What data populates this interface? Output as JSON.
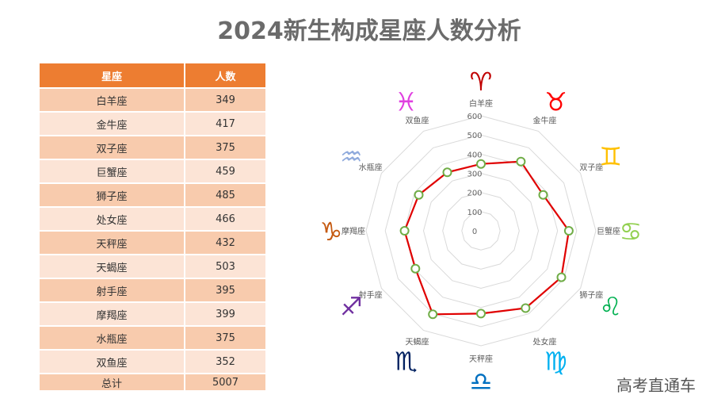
{
  "title": "2024新生构成星座人数分析",
  "table": {
    "headers": [
      "星座",
      "人数"
    ],
    "rows": [
      {
        "sign": "白羊座",
        "count": "349"
      },
      {
        "sign": "金牛座",
        "count": "417"
      },
      {
        "sign": "双子座",
        "count": "375"
      },
      {
        "sign": "巨蟹座",
        "count": "459"
      },
      {
        "sign": "狮子座",
        "count": "485"
      },
      {
        "sign": "处女座",
        "count": "466"
      },
      {
        "sign": "天秤座",
        "count": "432"
      },
      {
        "sign": "天蝎座",
        "count": "503"
      },
      {
        "sign": "射手座",
        "count": "395"
      },
      {
        "sign": "摩羯座",
        "count": "399"
      },
      {
        "sign": "水瓶座",
        "count": "375"
      },
      {
        "sign": "双鱼座",
        "count": "352"
      }
    ],
    "total": {
      "label": "总计",
      "count": "5007"
    }
  },
  "zodiac_icons": [
    {
      "sign": "白羊座",
      "icon": "aries-icon",
      "glyph": "♈",
      "color": "#c00000"
    },
    {
      "sign": "金牛座",
      "icon": "taurus-icon",
      "glyph": "♉",
      "color": "#ff0000"
    },
    {
      "sign": "双子座",
      "icon": "gemini-icon",
      "glyph": "♊",
      "color": "#ffc000"
    },
    {
      "sign": "巨蟹座",
      "icon": "cancer-icon",
      "glyph": "♋",
      "color": "#92d050"
    },
    {
      "sign": "狮子座",
      "icon": "leo-icon",
      "glyph": "♌",
      "color": "#00b050"
    },
    {
      "sign": "处女座",
      "icon": "virgo-icon",
      "glyph": "♍",
      "color": "#00b0f0"
    },
    {
      "sign": "天秤座",
      "icon": "libra-icon",
      "glyph": "♎",
      "color": "#0070c0"
    },
    {
      "sign": "天蝎座",
      "icon": "scorpio-icon",
      "glyph": "♏",
      "color": "#002060"
    },
    {
      "sign": "射手座",
      "icon": "sagittarius-icon",
      "glyph": "♐",
      "color": "#7030a0"
    },
    {
      "sign": "摩羯座",
      "icon": "capricorn-icon",
      "glyph": "♑",
      "color": "#c55a11"
    },
    {
      "sign": "水瓶座",
      "icon": "aquarius-icon",
      "glyph": "♒",
      "color": "#8faadc"
    },
    {
      "sign": "双鱼座",
      "icon": "pisces-icon",
      "glyph": "♓",
      "color": "#e040e0"
    }
  ],
  "watermark": "高考直通车",
  "chart_data": {
    "type": "radar",
    "title": "2024新生构成星座人数分析",
    "categories": [
      "白羊座",
      "金牛座",
      "双子座",
      "巨蟹座",
      "狮子座",
      "处女座",
      "天秤座",
      "天蝎座",
      "射手座",
      "摩羯座",
      "水瓶座",
      "双鱼座"
    ],
    "series": [
      {
        "name": "人数",
        "values": [
          349,
          417,
          375,
          459,
          485,
          466,
          432,
          503,
          395,
          399,
          375,
          352
        ],
        "line_color": "#e00000",
        "marker_color": "#70ad47"
      }
    ],
    "radial_ticks": [
      "0",
      "100",
      "200",
      "300",
      "400",
      "500",
      "600"
    ],
    "rlim": [
      0,
      600
    ],
    "grid": true,
    "legend": "none",
    "total": 5007
  }
}
